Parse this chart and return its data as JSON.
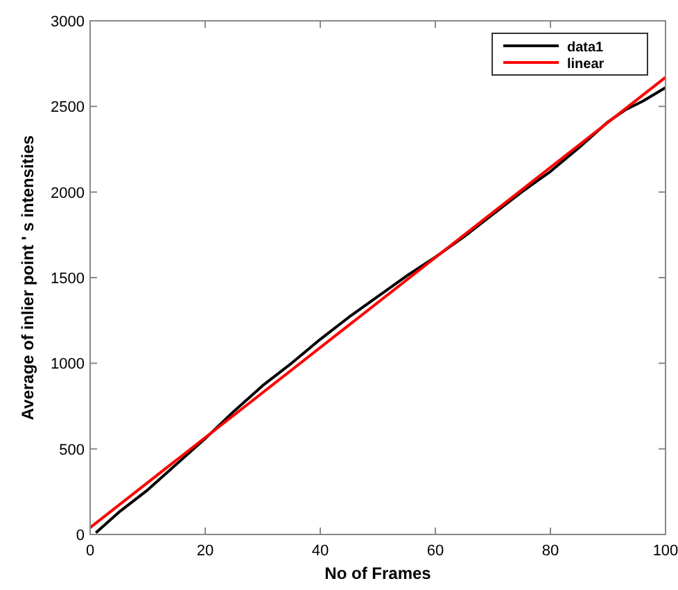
{
  "chart_data": {
    "type": "line",
    "xlabel": "No of Frames",
    "ylabel": "Average of inlier point ' s intensities",
    "xlim": [
      0,
      100
    ],
    "ylim": [
      0,
      3000
    ],
    "xticks": [
      0,
      20,
      40,
      60,
      80,
      100
    ],
    "yticks": [
      0,
      500,
      1000,
      1500,
      2000,
      2500,
      3000
    ],
    "grid": false,
    "legend": "top right",
    "line_style": "solid",
    "marker": "none",
    "series": [
      {
        "name": "data1",
        "color": "#000000",
        "x": [
          1,
          5,
          10,
          15,
          20,
          25,
          30,
          35,
          40,
          45,
          50,
          55,
          60,
          65,
          70,
          75,
          80,
          85,
          90,
          93,
          96,
          100
        ],
        "values": [
          10,
          130,
          260,
          410,
          560,
          720,
          870,
          1000,
          1140,
          1270,
          1390,
          1510,
          1620,
          1740,
          1870,
          2000,
          2120,
          2260,
          2410,
          2480,
          2530,
          2610
        ]
      },
      {
        "name": "linear",
        "color": "#ff0000",
        "x": [
          0,
          100
        ],
        "values": [
          40,
          2670
        ]
      }
    ]
  }
}
